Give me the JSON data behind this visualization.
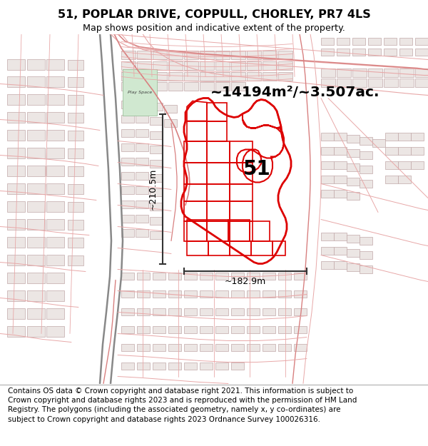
{
  "title_line1": "51, POPLAR DRIVE, COPPULL, CHORLEY, PR7 4LS",
  "title_line2": "Map shows position and indicative extent of the property.",
  "area_text": "~14194m²/~3.507ac.",
  "label_51": "51",
  "dim_vertical": "~210.5m",
  "dim_horizontal": "~182.9m",
  "footer": "Contains OS data © Crown copyright and database right 2021. This information is subject to Crown copyright and database rights 2023 and is reproduced with the permission of HM Land Registry. The polygons (including the associated geometry, namely x, y co-ordinates) are subject to Crown copyright and database rights 2023 Ordnance Survey 100026316.",
  "bg_color": "#f5f0ee",
  "street_color_main": "#d88080",
  "street_color_light": "#e8a8a8",
  "building_edge": "#c8a0a0",
  "building_fill": "#f0e8e8",
  "property_stroke": "#dd0000",
  "property_fill": "none",
  "dim_line_color": "#333333",
  "title_fontsize": 11.5,
  "subtitle_fontsize": 9.2,
  "area_fontsize": 14.5,
  "label_fontsize": 20,
  "dim_fontsize": 9,
  "footer_fontsize": 7.5
}
